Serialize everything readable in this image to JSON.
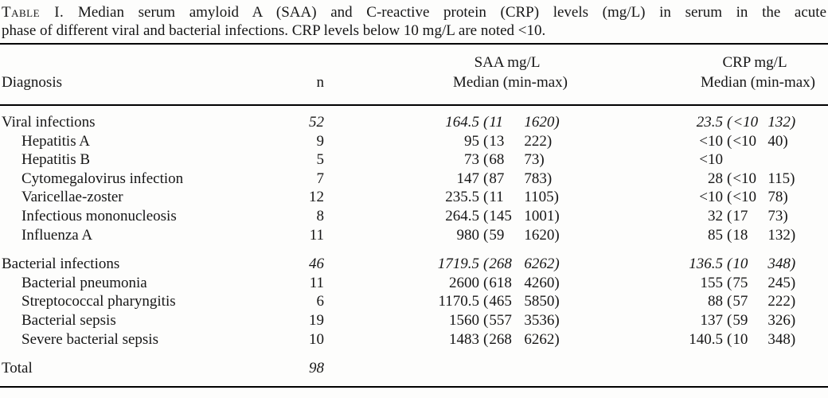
{
  "caption": {
    "label": "Table I.",
    "line1": "Median serum amyloid A (SAA) and C-reactive protein (CRP) levels (mg/L) in serum in the acute",
    "line2": "phase of different viral and bacterial infections. CRP levels below 10 mg/L are noted <10."
  },
  "header": {
    "diagnosis": "Diagnosis",
    "n": "n",
    "saa_title": "SAA mg/L",
    "saa_sub": "Median (min-max)",
    "crp_title": "CRP mg/L",
    "crp_sub": "Median (min-max)"
  },
  "rows": [
    {
      "diagnosis": "Viral infections",
      "n": "52",
      "saa_median": "164.5",
      "saa_min": "11",
      "saa_max": "1620",
      "crp_median": "23.5",
      "crp_min": "<10",
      "crp_max": "132"
    },
    {
      "diagnosis": "Hepatitis A",
      "n": "9",
      "saa_median": "95",
      "saa_min": "13",
      "saa_max": "222",
      "crp_median": "<10",
      "crp_min": "<10",
      "crp_max": "40"
    },
    {
      "diagnosis": "Hepatitis B",
      "n": "5",
      "saa_median": "73",
      "saa_min": "68",
      "saa_max": "73",
      "crp_median": "<10"
    },
    {
      "diagnosis": "Cytomegalovirus infection",
      "n": "7",
      "saa_median": "147",
      "saa_min": "87",
      "saa_max": "783",
      "crp_median": "28",
      "crp_min": "<10",
      "crp_max": "115"
    },
    {
      "diagnosis": "Varicellae-zoster",
      "n": "12",
      "saa_median": "235.5",
      "saa_min": "11",
      "saa_max": "1105",
      "crp_median": "<10",
      "crp_min": "<10",
      "crp_max": "78"
    },
    {
      "diagnosis": "Infectious mononucleosis",
      "n": "8",
      "saa_median": "264.5",
      "saa_min": "145",
      "saa_max": "1001",
      "crp_median": "32",
      "crp_min": "17",
      "crp_max": "73"
    },
    {
      "diagnosis": "Influenza A",
      "n": "11",
      "saa_median": "980",
      "saa_min": "59",
      "saa_max": "1620",
      "crp_median": "85",
      "crp_min": "18",
      "crp_max": "132"
    },
    {
      "diagnosis": "Bacterial infections",
      "n": "46",
      "saa_median": "1719.5",
      "saa_min": "268",
      "saa_max": "6262",
      "crp_median": "136.5",
      "crp_min": "10",
      "crp_max": "348"
    },
    {
      "diagnosis": "Bacterial pneumonia",
      "n": "11",
      "saa_median": "2600",
      "saa_min": "618",
      "saa_max": "4260",
      "crp_median": "155",
      "crp_min": "75",
      "crp_max": "245"
    },
    {
      "diagnosis": "Streptococcal pharyngitis",
      "n": "6",
      "saa_median": "1170.5",
      "saa_min": "465",
      "saa_max": "5850",
      "crp_median": "88",
      "crp_min": "57",
      "crp_max": "222"
    },
    {
      "diagnosis": "Bacterial sepsis",
      "n": "19",
      "saa_median": "1560",
      "saa_min": "557",
      "saa_max": "3536",
      "crp_median": "137",
      "crp_min": "59",
      "crp_max": "326"
    },
    {
      "diagnosis": "Severe bacterial sepsis",
      "n": "10",
      "saa_median": "1483",
      "saa_min": "268",
      "saa_max": "6262",
      "crp_median": "140.5",
      "crp_min": "10",
      "crp_max": "348"
    },
    {
      "diagnosis": "Total",
      "n": "98"
    }
  ]
}
